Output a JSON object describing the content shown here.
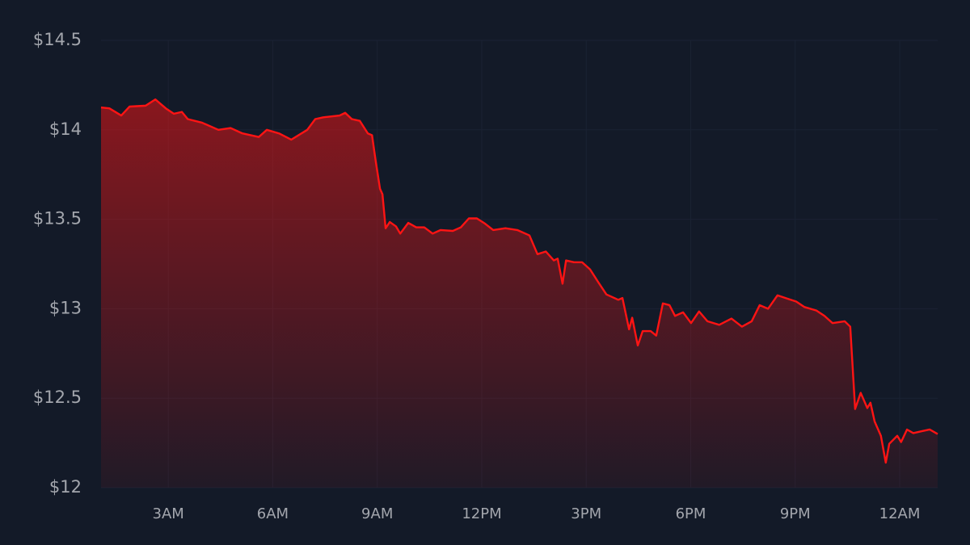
{
  "chart_data": {
    "type": "area",
    "x": [
      1.07,
      1.31,
      1.65,
      1.89,
      2.35,
      2.63,
      2.93,
      3.16,
      3.39,
      3.56,
      3.97,
      4.44,
      4.79,
      5.13,
      5.6,
      5.83,
      6.18,
      6.53,
      6.99,
      7.22,
      7.45,
      7.92,
      8.08,
      8.27,
      8.5,
      8.73,
      8.85,
      8.96,
      9.08,
      9.15,
      9.24,
      9.36,
      9.54,
      9.66,
      9.89,
      10.12,
      10.35,
      10.59,
      10.82,
      11.17,
      11.4,
      11.63,
      11.86,
      12.1,
      12.33,
      12.68,
      13.02,
      13.37,
      13.6,
      13.84,
      14.07,
      14.18,
      14.32,
      14.42,
      14.65,
      14.88,
      15.11,
      15.34,
      15.58,
      15.92,
      16.04,
      16.23,
      16.32,
      16.48,
      16.62,
      16.85,
      17.01,
      17.2,
      17.39,
      17.55,
      17.78,
      18.01,
      18.24,
      18.48,
      18.82,
      19.17,
      19.47,
      19.75,
      19.98,
      20.22,
      20.49,
      20.8,
      21.03,
      21.26,
      21.61,
      21.84,
      22.07,
      22.42,
      22.58,
      22.72,
      22.88,
      23.07,
      23.16,
      23.28,
      23.46,
      23.6,
      23.7,
      23.93,
      24.04,
      24.21,
      24.39,
      24.62,
      24.86,
      25.09
    ],
    "values": [
      14.125,
      14.12,
      14.08,
      14.13,
      14.135,
      14.17,
      14.12,
      14.09,
      14.1,
      14.06,
      14.04,
      14.0,
      14.01,
      13.98,
      13.96,
      14.0,
      13.98,
      13.945,
      14.0,
      14.06,
      14.07,
      14.08,
      14.095,
      14.06,
      14.05,
      13.98,
      13.97,
      13.82,
      13.67,
      13.64,
      13.45,
      13.485,
      13.46,
      13.42,
      13.48,
      13.455,
      13.455,
      13.42,
      13.44,
      13.435,
      13.455,
      13.505,
      13.505,
      13.475,
      13.44,
      13.45,
      13.44,
      13.41,
      13.305,
      13.32,
      13.27,
      13.28,
      13.14,
      13.27,
      13.26,
      13.26,
      13.22,
      13.15,
      13.08,
      13.05,
      13.06,
      12.885,
      12.95,
      12.795,
      12.875,
      12.875,
      12.85,
      13.03,
      13.02,
      12.96,
      12.98,
      12.92,
      12.985,
      12.93,
      12.91,
      12.945,
      12.9,
      12.93,
      13.02,
      13.0,
      13.075,
      13.055,
      13.04,
      13.01,
      12.99,
      12.96,
      12.92,
      12.93,
      12.9,
      12.44,
      12.53,
      12.445,
      12.475,
      12.37,
      12.29,
      12.14,
      12.245,
      12.29,
      12.255,
      12.325,
      12.305,
      12.315,
      12.325,
      12.3
    ],
    "color": "#ff1414",
    "xlim": [
      1.07,
      25.09
    ],
    "xticks": [
      {
        "value": 3,
        "label": "3AM"
      },
      {
        "value": 6,
        "label": "6AM"
      },
      {
        "value": 9,
        "label": "9AM"
      },
      {
        "value": 12,
        "label": "12PM"
      },
      {
        "value": 15,
        "label": "3PM"
      },
      {
        "value": 18,
        "label": "6PM"
      },
      {
        "value": 21,
        "label": "9PM"
      },
      {
        "value": 24,
        "label": "12AM"
      }
    ],
    "ylim": [
      12,
      14.5
    ],
    "yticks": [
      {
        "value": 12,
        "label": "$12"
      },
      {
        "value": 12.5,
        "label": "$12.5"
      },
      {
        "value": 13,
        "label": "$13"
      },
      {
        "value": 13.5,
        "label": "$13.5"
      },
      {
        "value": 14,
        "label": "$14"
      },
      {
        "value": 14.5,
        "label": "$14.5"
      }
    ],
    "grid": true
  }
}
